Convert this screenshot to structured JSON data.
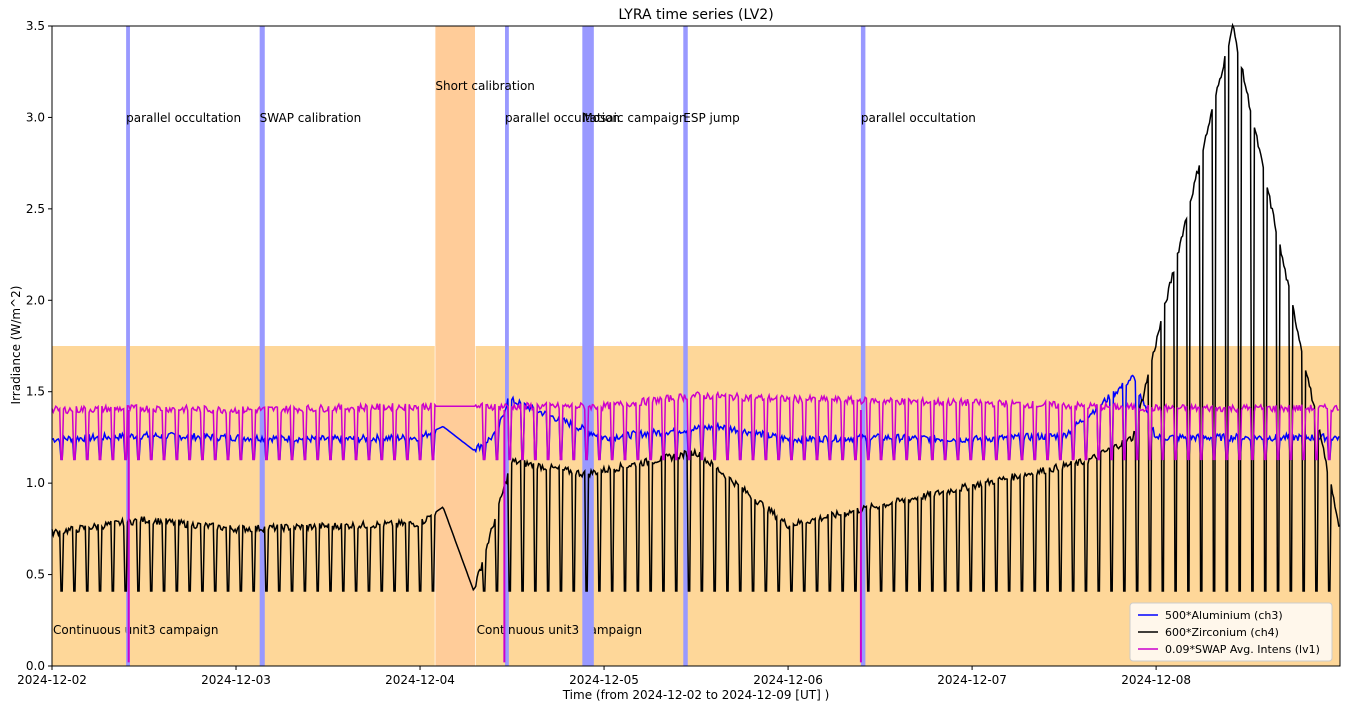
{
  "chart_data": {
    "type": "line",
    "title": "LYRA time series (LV2)",
    "xlabel": "Time (from 2024-12-02 to 2024-12-09 [UT] )",
    "ylabel": "Irradiance (W/m^2)",
    "xlim": [
      "2024-12-02T00:00",
      "2024-12-08T23:59"
    ],
    "ylim": [
      0,
      3.5
    ],
    "x_ticks": [
      "2024-12-02",
      "2024-12-03",
      "2024-12-04",
      "2024-12-05",
      "2024-12-06",
      "2024-12-07",
      "2024-12-08"
    ],
    "y_ticks": [
      "0.0",
      "0.5",
      "1.0",
      "1.5",
      "2.0",
      "2.5",
      "3.0",
      "3.5"
    ],
    "grid": false,
    "legend_position": "lower-right",
    "series": [
      {
        "name": "500*Aluminium (ch3)",
        "color": "#0000ff",
        "baseline": 1.25,
        "min": 1.13,
        "orbit_hours": 1.67,
        "points": [
          [
            "2024-12-02T00:00",
            1.24
          ],
          [
            "2024-12-02T12:00",
            1.26
          ],
          [
            "2024-12-03T00:00",
            1.25
          ],
          [
            "2024-12-03T12:00",
            1.24
          ],
          [
            "2024-12-04T00:00",
            1.25
          ],
          [
            "2024-12-04T03:00",
            1.31
          ],
          [
            "2024-12-04T07:00",
            1.18
          ],
          [
            "2024-12-04T10:00",
            1.27
          ],
          [
            "2024-12-04T11:30",
            1.46
          ],
          [
            "2024-12-05T00:00",
            1.25
          ],
          [
            "2024-12-05T15:00",
            1.31
          ],
          [
            "2024-12-06T00:00",
            1.24
          ],
          [
            "2024-12-06T12:00",
            1.25
          ],
          [
            "2024-12-07T00:00",
            1.24
          ],
          [
            "2024-12-07T12:00",
            1.26
          ],
          [
            "2024-12-07T21:00",
            1.58
          ],
          [
            "2024-12-08T00:00",
            1.25
          ],
          [
            "2024-12-08T23:59",
            1.25
          ]
        ]
      },
      {
        "name": "600*Zirconium (ch4)",
        "color": "#000000",
        "baseline": 0.75,
        "min": 0.41,
        "orbit_hours": 1.67,
        "points": [
          [
            "2024-12-02T00:00",
            0.73
          ],
          [
            "2024-12-02T12:00",
            0.8
          ],
          [
            "2024-12-03T00:00",
            0.75
          ],
          [
            "2024-12-04T00:00",
            0.78
          ],
          [
            "2024-12-04T03:00",
            0.87
          ],
          [
            "2024-12-04T07:00",
            0.41
          ],
          [
            "2024-12-04T12:00",
            1.12
          ],
          [
            "2024-12-04T21:30",
            1.05
          ],
          [
            "2024-12-05T12:00",
            1.17
          ],
          [
            "2024-12-06T00:00",
            0.77
          ],
          [
            "2024-12-07T15:00",
            1.12
          ],
          [
            "2024-12-07T21:00",
            1.25
          ],
          [
            "2024-12-08T10:00",
            3.5
          ],
          [
            "2024-12-08T23:59",
            0.75
          ]
        ]
      },
      {
        "name": "0.09*SWAP Avg. Intens (lv1)",
        "color": "#cc00cc",
        "baseline": 1.4,
        "min": 1.13,
        "orbit_hours": 1.67,
        "points": [
          [
            "2024-12-02T00:00",
            1.4
          ],
          [
            "2024-12-02T12:00",
            1.41
          ],
          [
            "2024-12-03T00:00",
            1.4
          ],
          [
            "2024-12-04T00:00",
            1.42
          ],
          [
            "2024-12-05T00:00",
            1.42
          ],
          [
            "2024-12-05T12:00",
            1.48
          ],
          [
            "2024-12-06T00:00",
            1.46
          ],
          [
            "2024-12-07T00:00",
            1.44
          ],
          [
            "2024-12-08T00:00",
            1.41
          ],
          [
            "2024-12-08T23:59",
            1.41
          ]
        ],
        "dropouts": [
          "2024-12-02T10:00",
          "2024-12-04T11:00",
          "2024-12-06T09:30"
        ]
      }
    ],
    "events": [
      {
        "label": "parallel occultation",
        "start": "2024-12-02T09:40",
        "end": "2024-12-02T10:10",
        "color": "#9999ff"
      },
      {
        "label": "SWAP calibration",
        "start": "2024-12-03T03:05",
        "end": "2024-12-03T03:45",
        "color": "#9999ff"
      },
      {
        "label": "Short calibration",
        "start": "2024-12-04T02:00",
        "end": "2024-12-04T07:10",
        "color": "#ffcc99"
      },
      {
        "label": "parallel occultation",
        "start": "2024-12-04T11:05",
        "end": "2024-12-04T11:35",
        "color": "#9999ff"
      },
      {
        "label": "Mosaic campaign",
        "start": "2024-12-04T21:10",
        "end": "2024-12-04T22:40",
        "color": "#9999ff"
      },
      {
        "label": "ESP jump",
        "start": "2024-12-05T10:20",
        "end": "2024-12-05T10:55",
        "color": "#9999ff"
      },
      {
        "label": "parallel occultation",
        "start": "2024-12-06T09:30",
        "end": "2024-12-06T10:05",
        "color": "#9999ff"
      }
    ],
    "campaigns": [
      {
        "label": "Continuous unit3 campaign",
        "start": "2024-12-02T00:00",
        "end": "2024-12-04T01:55",
        "y_top": 1.75,
        "color": "#fed799"
      },
      {
        "label": "Continuous unit3 campaign",
        "start": "2024-12-04T07:15",
        "end": "2024-12-08T23:59",
        "y_top": 1.75,
        "color": "#fed799"
      }
    ]
  }
}
